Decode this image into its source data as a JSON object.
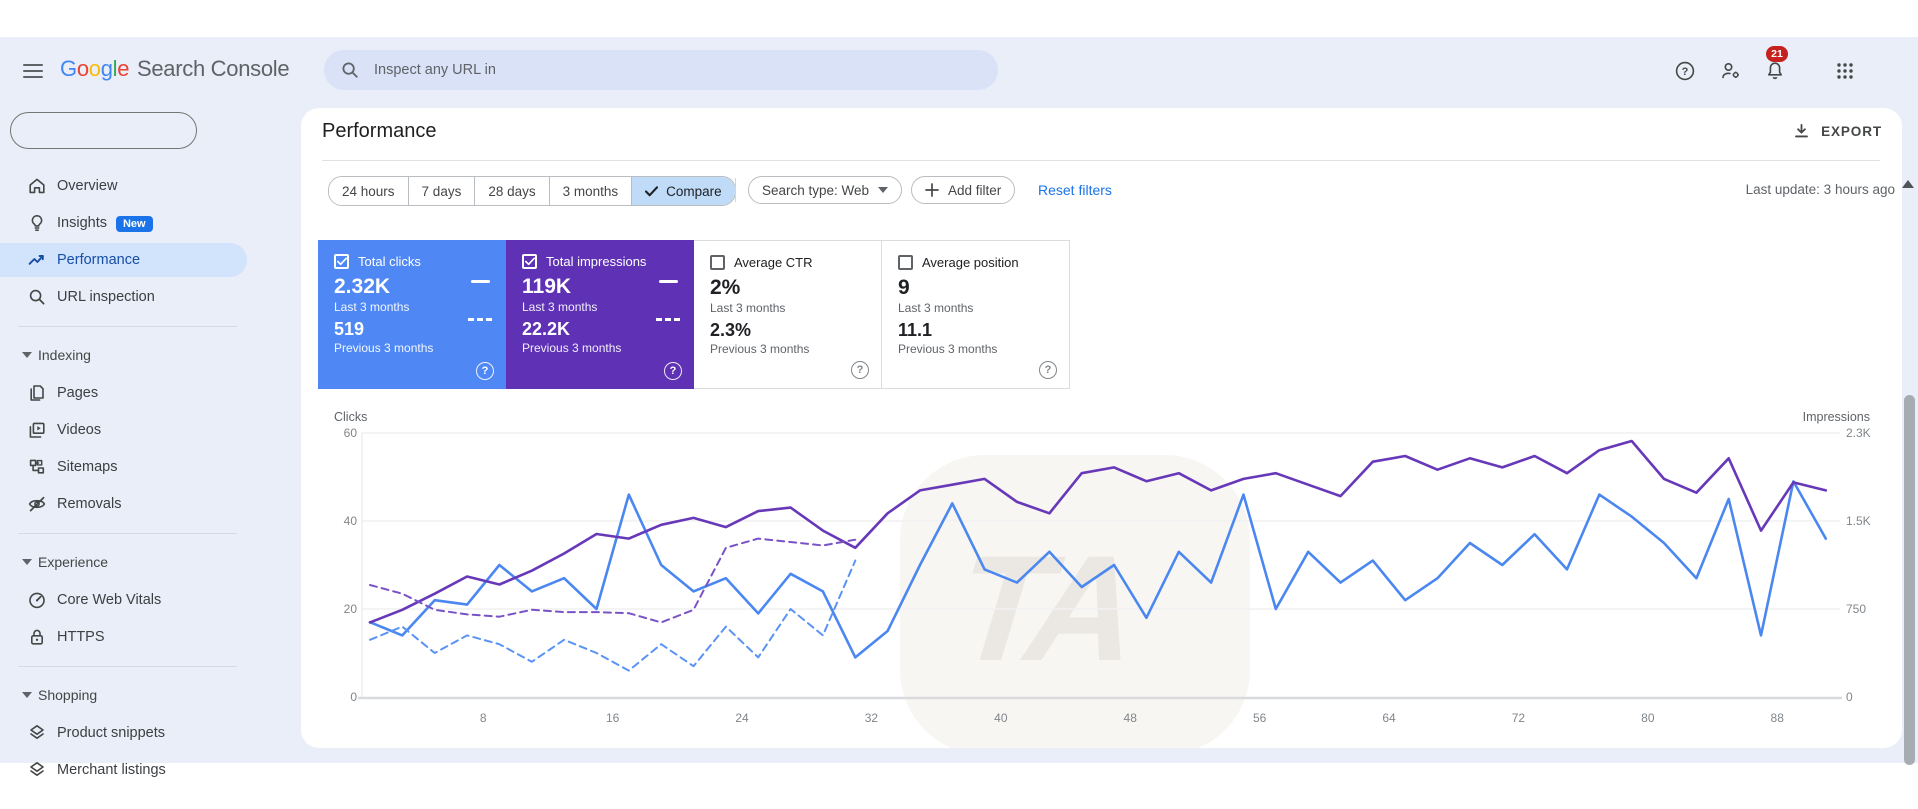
{
  "header": {
    "logo": {
      "letters": [
        {
          "ch": "G",
          "color": "#4285F4"
        },
        {
          "ch": "o",
          "color": "#EA4335"
        },
        {
          "ch": "o",
          "color": "#FBBC05"
        },
        {
          "ch": "g",
          "color": "#4285F4"
        },
        {
          "ch": "l",
          "color": "#34A853"
        },
        {
          "ch": "e",
          "color": "#EA4335"
        }
      ],
      "suffix": "Search Console"
    },
    "search_placeholder": "Inspect any URL in",
    "notification_count": "21"
  },
  "property_selector": {
    "value": ""
  },
  "sidebar": {
    "sections": [
      {
        "items": [
          {
            "icon": "home",
            "label": "Overview",
            "selected": false
          },
          {
            "icon": "lightbulb",
            "label": "Insights",
            "badge": "New",
            "selected": false
          },
          {
            "icon": "trending",
            "label": "Performance",
            "selected": true
          },
          {
            "icon": "magnifier",
            "label": "URL inspection",
            "selected": false
          }
        ]
      },
      {
        "header": "Indexing",
        "items": [
          {
            "icon": "pages",
            "label": "Pages"
          },
          {
            "icon": "video",
            "label": "Videos"
          },
          {
            "icon": "sitemap",
            "label": "Sitemaps"
          },
          {
            "icon": "eye-off",
            "label": "Removals"
          }
        ]
      },
      {
        "header": "Experience",
        "items": [
          {
            "icon": "speedometer",
            "label": "Core Web Vitals"
          },
          {
            "icon": "lock",
            "label": "HTTPS"
          }
        ]
      },
      {
        "header": "Shopping",
        "items": [
          {
            "icon": "layers",
            "label": "Product snippets"
          },
          {
            "icon": "layers",
            "label": "Merchant listings"
          }
        ]
      }
    ]
  },
  "toolbar": {
    "title": "Performance",
    "export_label": "EXPORT",
    "date_ranges": [
      "24 hours",
      "7 days",
      "28 days",
      "3 months"
    ],
    "compare_label": "Compare",
    "search_type": "Search type: Web",
    "add_filter": "Add filter",
    "reset_filters": "Reset filters",
    "last_update": "Last update: 3 hours ago"
  },
  "cards": [
    {
      "label": "Total clicks",
      "checked": true,
      "value": "2.32K",
      "period": "Last 3 months",
      "prev_value": "519",
      "prev_period": "Previous 3 months",
      "bg": "#4f88f4",
      "text": "#ffffff"
    },
    {
      "label": "Total impressions",
      "checked": true,
      "value": "119K",
      "period": "Last 3 months",
      "prev_value": "22.2K",
      "prev_period": "Previous 3 months",
      "bg": "#5e31b5",
      "text": "#ffffff"
    },
    {
      "label": "Average CTR",
      "checked": false,
      "value": "2%",
      "period": "Last 3 months",
      "prev_value": "2.3%",
      "prev_period": "Previous 3 months",
      "bg": "#ffffff",
      "text": "#202124"
    },
    {
      "label": "Average position",
      "checked": false,
      "value": "9",
      "period": "Last 3 months",
      "prev_value": "11.1",
      "prev_period": "Previous 3 months",
      "bg": "#ffffff",
      "text": "#202124"
    }
  ],
  "chart_data": {
    "type": "line",
    "title": "Clicks and impressions over last 3 months vs previous 3 months",
    "grid": true,
    "watermark": "TA",
    "left_axis": {
      "title": "Clicks",
      "ticks": [
        0,
        20,
        40,
        60
      ],
      "max": 60
    },
    "right_axis": {
      "title": "Impressions",
      "tick_labels": [
        "0",
        "750",
        "1.5K",
        "2.3K"
      ],
      "max": 2300
    },
    "x_axis": {
      "tick_labels": [
        8,
        16,
        24,
        32,
        40,
        48,
        56,
        64,
        72,
        80,
        88
      ],
      "unit": "day index"
    },
    "series": [
      {
        "name": "clicks-last-3-months",
        "axis": "left",
        "style": "solid",
        "color": "#4b87f0",
        "x_start": 1,
        "x_step": 2,
        "values": [
          17,
          14,
          22,
          21,
          30,
          24,
          27,
          20,
          46,
          30,
          24,
          27,
          19,
          28,
          24,
          9,
          15,
          30,
          44,
          29,
          26,
          33,
          25,
          30,
          18,
          33,
          26,
          46,
          20,
          33,
          26,
          31,
          22,
          27,
          35,
          30,
          37,
          29,
          46,
          41,
          35,
          27,
          45,
          14,
          49,
          36
        ]
      },
      {
        "name": "impressions-last-3-months",
        "axis": "right",
        "style": "solid",
        "color": "#6738b8",
        "x_start": 1,
        "x_step": 2,
        "values": [
          650,
          760,
          900,
          1050,
          980,
          1100,
          1250,
          1420,
          1380,
          1500,
          1560,
          1480,
          1620,
          1650,
          1450,
          1300,
          1600,
          1800,
          1850,
          1900,
          1700,
          1600,
          1950,
          2000,
          1880,
          1950,
          1800,
          1900,
          1950,
          1850,
          1750,
          2050,
          2100,
          1980,
          2080,
          2000,
          2100,
          1950,
          2150,
          2230,
          1900,
          1780,
          2080,
          1450,
          1870,
          1800
        ]
      },
      {
        "name": "clicks-previous-3-months",
        "axis": "left",
        "style": "dashed",
        "color": "#5b93f5",
        "x_start": 1,
        "x_step": 2,
        "values": [
          13,
          16,
          10,
          14,
          12,
          8,
          13,
          10,
          6,
          12,
          7,
          16,
          9,
          20,
          14,
          31
        ]
      },
      {
        "name": "impressions-previous-3-months",
        "axis": "right",
        "style": "dashed",
        "color": "#7a52c7",
        "x_start": 1,
        "x_step": 2,
        "values": [
          976,
          900,
          760,
          720,
          700,
          760,
          740,
          740,
          730,
          650,
          760,
          1300,
          1380,
          1350,
          1320,
          1370
        ]
      }
    ]
  }
}
